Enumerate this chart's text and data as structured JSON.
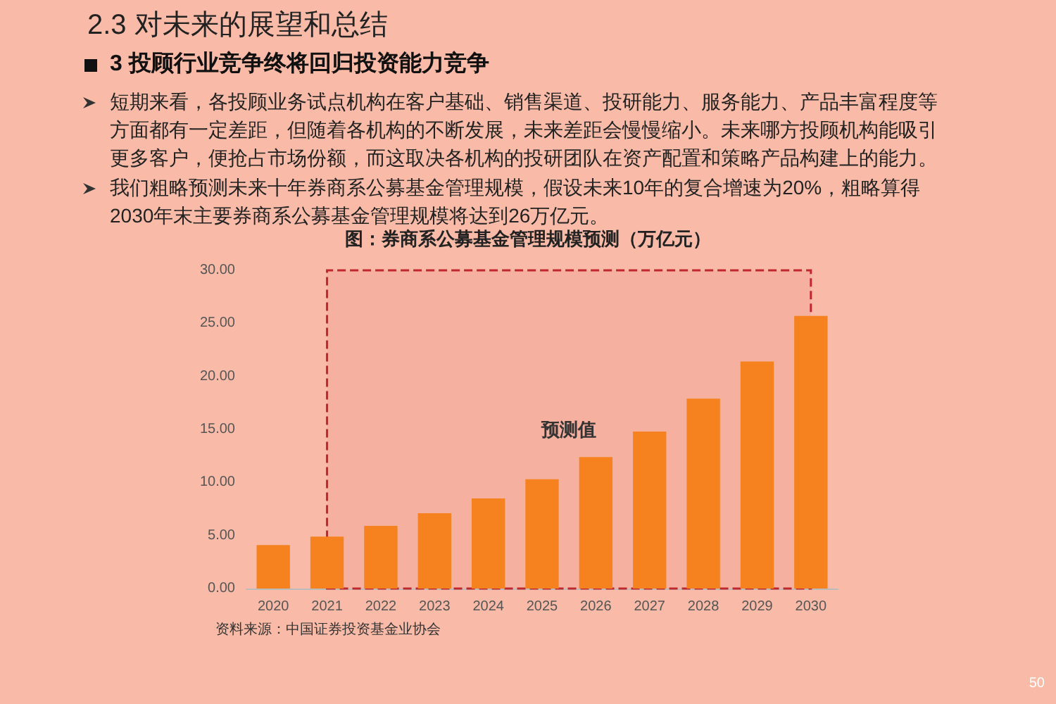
{
  "chart_data": {
    "type": "bar",
    "title": "2.3 对未来的展望和总结",
    "subtitle": "3 投顾行业竞争终将回归投资能力竞争",
    "annotations": [
      "短期来看，各投顾业务试点机构在客户基础、销售渠道、投研能力、服务能力、产品丰富程度等方面都有一定差距，但随着各机构的不断发展，未来差距会慢慢缩小。未来哪方投顾机构能吸引更多客户，便抢占市场份额，而这取决各机构的投研团队在资产配置和策略产品构建上的能力。",
      "我们粗略预测未来十年券商系公募基金管理规模，假设未来10年的复合增速为20%，粗略算得2030年末主要券商系公募基金管理规模将达到26万亿元。",
      "图：券商系公募基金管理规模预测（万亿元）",
      "资料来源：中国证券投资基金业协会",
      "50"
    ],
    "categories": [
      "2020",
      "2021",
      "2022",
      "2023",
      "2024",
      "2025",
      "2026",
      "2027",
      "2028",
      "2029",
      "2030"
    ],
    "values": [
      4.1,
      4.9,
      5.9,
      7.1,
      8.5,
      10.3,
      12.4,
      14.8,
      17.9,
      21.4,
      25.7
    ],
    "color": "#f5821f",
    "ylim": [
      0,
      30
    ],
    "yticks": [
      {
        "value": 0,
        "label": "0.00"
      },
      {
        "value": 5,
        "label": "5.00"
      },
      {
        "value": 10,
        "label": "10.00"
      },
      {
        "value": 15,
        "label": "15.00"
      },
      {
        "value": 20,
        "label": "20.00"
      },
      {
        "value": 25,
        "label": "25.00"
      },
      {
        "value": 30,
        "label": "30.00"
      }
    ],
    "bands": [
      {
        "axis": "x",
        "from": "2021",
        "to": "2030",
        "label": "预测值",
        "color": "#c0282d"
      }
    ]
  }
}
